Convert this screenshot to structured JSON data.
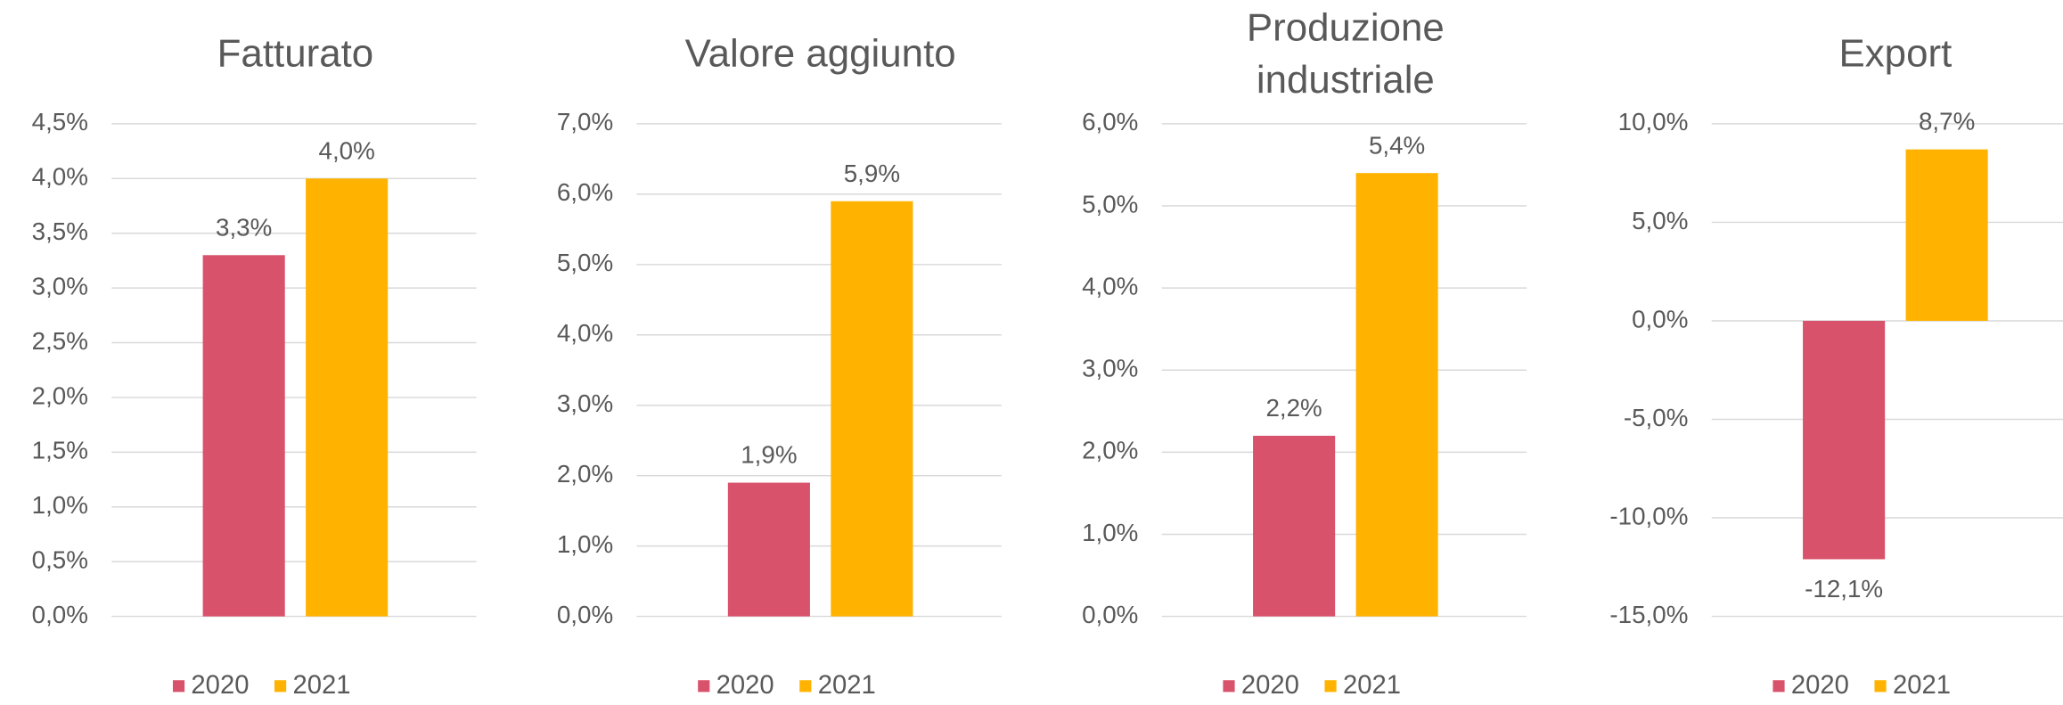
{
  "chart_data": [
    {
      "type": "bar",
      "title": "Fatturato",
      "categories": [
        null
      ],
      "series": [
        {
          "name": "2020",
          "color": "#d9526b",
          "values": [
            3.3
          ],
          "value_labels": [
            "3,3%"
          ]
        },
        {
          "name": "2021",
          "color": "#ffb300",
          "values": [
            4.0
          ],
          "value_labels": [
            "4,0%"
          ]
        }
      ],
      "ylim": [
        0,
        4.5
      ],
      "yticks": [
        {
          "value": 0,
          "label": "0,0%"
        },
        {
          "value": 0.5,
          "label": "0,5%"
        },
        {
          "value": 1,
          "label": "1,0%"
        },
        {
          "value": 1.5,
          "label": "1,5%"
        },
        {
          "value": 2,
          "label": "2,0%"
        },
        {
          "value": 2.5,
          "label": "2,5%"
        },
        {
          "value": 3,
          "label": "3,0%"
        },
        {
          "value": 3.5,
          "label": "3,5%"
        },
        {
          "value": 4,
          "label": "4,0%"
        },
        {
          "value": 4.5,
          "label": "4,5%"
        }
      ],
      "grid": true,
      "legend": "bottom"
    },
    {
      "type": "bar",
      "title": "Valore aggiunto",
      "categories": [
        null
      ],
      "series": [
        {
          "name": "2020",
          "color": "#d9526b",
          "values": [
            1.9
          ],
          "value_labels": [
            "1,9%"
          ]
        },
        {
          "name": "2021",
          "color": "#ffb300",
          "values": [
            5.9
          ],
          "value_labels": [
            "5,9%"
          ]
        }
      ],
      "ylim": [
        0,
        7
      ],
      "yticks": [
        {
          "value": 0,
          "label": "0,0%"
        },
        {
          "value": 1,
          "label": "1,0%"
        },
        {
          "value": 2,
          "label": "2,0%"
        },
        {
          "value": 3,
          "label": "3,0%"
        },
        {
          "value": 4,
          "label": "4,0%"
        },
        {
          "value": 5,
          "label": "5,0%"
        },
        {
          "value": 6,
          "label": "6,0%"
        },
        {
          "value": 7,
          "label": "7,0%"
        }
      ],
      "grid": true,
      "legend": "bottom"
    },
    {
      "type": "bar",
      "title": "Produzione industriale",
      "categories": [
        null
      ],
      "series": [
        {
          "name": "2020",
          "color": "#d9526b",
          "values": [
            2.2
          ],
          "value_labels": [
            "2,2%"
          ]
        },
        {
          "name": "2021",
          "color": "#ffb300",
          "values": [
            5.4
          ],
          "value_labels": [
            "5,4%"
          ]
        }
      ],
      "ylim": [
        0,
        6
      ],
      "yticks": [
        {
          "value": 0,
          "label": "0,0%"
        },
        {
          "value": 1,
          "label": "1,0%"
        },
        {
          "value": 2,
          "label": "2,0%"
        },
        {
          "value": 3,
          "label": "3,0%"
        },
        {
          "value": 4,
          "label": "4,0%"
        },
        {
          "value": 5,
          "label": "5,0%"
        },
        {
          "value": 6,
          "label": "6,0%"
        }
      ],
      "grid": true,
      "legend": "bottom"
    },
    {
      "type": "bar",
      "title": "Export",
      "categories": [
        null
      ],
      "series": [
        {
          "name": "2020",
          "color": "#d9526b",
          "values": [
            -12.1
          ],
          "value_labels": [
            "-12,1%"
          ]
        },
        {
          "name": "2021",
          "color": "#ffb300",
          "values": [
            8.7
          ],
          "value_labels": [
            "8,7%"
          ]
        }
      ],
      "ylim": [
        -15,
        10
      ],
      "yticks": [
        {
          "value": -15,
          "label": "-15,0%"
        },
        {
          "value": -10,
          "label": "-10,0%"
        },
        {
          "value": -5,
          "label": "-5,0%"
        },
        {
          "value": 0,
          "label": "0,0%"
        },
        {
          "value": 5,
          "label": "5,0%"
        },
        {
          "value": 10,
          "label": "10,0%"
        }
      ],
      "grid": true,
      "legend": "bottom"
    }
  ]
}
